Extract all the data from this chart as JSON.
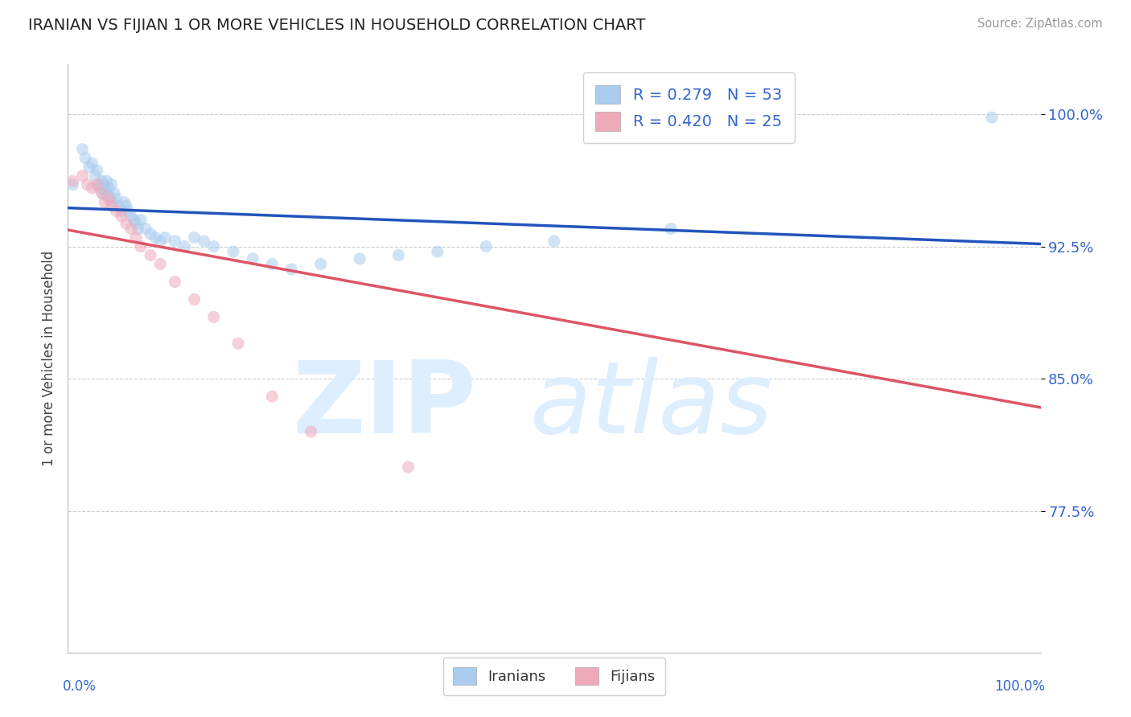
{
  "title": "IRANIAN VS FIJIAN 1 OR MORE VEHICLES IN HOUSEHOLD CORRELATION CHART",
  "source_text": "Source: ZipAtlas.com",
  "ylabel": "1 or more Vehicles in Household",
  "ytick_labels": [
    "100.0%",
    "92.5%",
    "85.0%",
    "77.5%"
  ],
  "ytick_values": [
    1.0,
    0.925,
    0.85,
    0.775
  ],
  "xlim": [
    0.0,
    1.0
  ],
  "ylim": [
    0.695,
    1.028
  ],
  "legend_r_n": [
    "R = 0.279   N = 53",
    "R = 0.420   N = 25"
  ],
  "iranians_x": [
    0.005,
    0.015,
    0.018,
    0.022,
    0.025,
    0.028,
    0.03,
    0.032,
    0.033,
    0.035,
    0.036,
    0.037,
    0.038,
    0.04,
    0.04,
    0.042,
    0.043,
    0.045,
    0.046,
    0.048,
    0.05,
    0.052,
    0.055,
    0.058,
    0.06,
    0.062,
    0.065,
    0.068,
    0.07,
    0.072,
    0.075,
    0.08,
    0.085,
    0.09,
    0.095,
    0.1,
    0.11,
    0.12,
    0.13,
    0.14,
    0.15,
    0.17,
    0.19,
    0.21,
    0.23,
    0.26,
    0.3,
    0.34,
    0.38,
    0.43,
    0.5,
    0.62,
    0.95
  ],
  "iranians_y": [
    0.96,
    0.98,
    0.975,
    0.97,
    0.972,
    0.965,
    0.968,
    0.96,
    0.958,
    0.962,
    0.955,
    0.96,
    0.957,
    0.955,
    0.962,
    0.958,
    0.953,
    0.96,
    0.95,
    0.955,
    0.952,
    0.948,
    0.945,
    0.95,
    0.948,
    0.945,
    0.942,
    0.94,
    0.938,
    0.935,
    0.94,
    0.935,
    0.932,
    0.93,
    0.928,
    0.93,
    0.928,
    0.925,
    0.93,
    0.928,
    0.925,
    0.922,
    0.918,
    0.915,
    0.912,
    0.915,
    0.918,
    0.92,
    0.922,
    0.925,
    0.928,
    0.935,
    0.998
  ],
  "fijians_x": [
    0.005,
    0.015,
    0.02,
    0.025,
    0.03,
    0.035,
    0.038,
    0.042,
    0.045,
    0.05,
    0.055,
    0.06,
    0.065,
    0.07,
    0.075,
    0.085,
    0.095,
    0.11,
    0.13,
    0.15,
    0.175,
    0.21,
    0.25,
    0.35,
    0.65
  ],
  "fijians_y": [
    0.962,
    0.965,
    0.96,
    0.958,
    0.96,
    0.955,
    0.95,
    0.952,
    0.948,
    0.945,
    0.942,
    0.938,
    0.935,
    0.93,
    0.925,
    0.92,
    0.915,
    0.905,
    0.895,
    0.885,
    0.87,
    0.84,
    0.82,
    0.8,
    0.998
  ],
  "blue_line_color": "#2255bb",
  "pink_line_color": "#dd5566",
  "blue_dot_color": "#aaccee",
  "pink_dot_color": "#eeaabb",
  "dot_size": 120,
  "dot_alpha": 0.55,
  "line_width": 2.5,
  "footer_iranians": "Iranians",
  "footer_fijians": "Fijians"
}
